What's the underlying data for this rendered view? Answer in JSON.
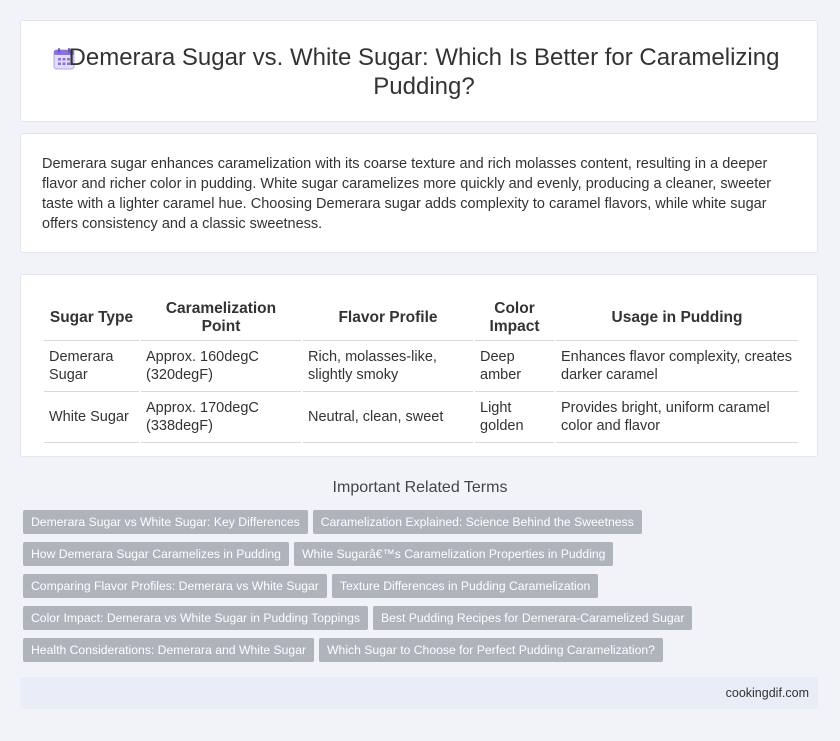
{
  "header": {
    "icon": "calendar-icon",
    "title": "Demerara Sugar vs. White Sugar: Which Is Better for Caramelizing Pudding?"
  },
  "intro": {
    "text": "Demerara sugar enhances caramelization with its coarse texture and rich molasses content, resulting in a deeper flavor and richer color in pudding. White sugar caramelizes more quickly and evenly, producing a cleaner, sweeter taste with a lighter caramel hue. Choosing Demerara sugar adds complexity to caramel flavors, while white sugar offers consistency and a classic sweetness."
  },
  "table": {
    "headers": [
      "Sugar Type",
      "Caramelization Point",
      "Flavor Profile",
      "Color Impact",
      "Usage in Pudding"
    ],
    "rows": [
      [
        "Demerara Sugar",
        "Approx. 160degC (320degF)",
        "Rich, molasses-like, slightly smoky",
        "Deep amber",
        "Enhances flavor complexity, creates darker caramel"
      ],
      [
        "White Sugar",
        "Approx. 170degC (338degF)",
        "Neutral, clean, sweet",
        "Light golden",
        "Provides bright, uniform caramel color and flavor"
      ]
    ]
  },
  "related": {
    "title": "Important Related Terms",
    "tags": [
      "Demerara Sugar vs White Sugar: Key Differences",
      "Caramelization Explained: Science Behind the Sweetness",
      "How Demerara Sugar Caramelizes in Pudding",
      "White Sugarâ€™s Caramelization Properties in Pudding",
      "Comparing Flavor Profiles: Demerara vs White Sugar",
      "Texture Differences in Pudding Caramelization",
      "Color Impact: Demerara vs White Sugar in Pudding Toppings",
      "Best Pudding Recipes for Demerara-Caramelized Sugar",
      "Health Considerations: Demerara and White Sugar",
      "Which Sugar to Choose for Perfect Pudding Caramelization?"
    ]
  },
  "footer": {
    "site": "cookingdif.com"
  },
  "colors": {
    "background": "#f1f3f8",
    "tag_background": "#aeb3bc",
    "icon_accent": "#8a72d8"
  }
}
